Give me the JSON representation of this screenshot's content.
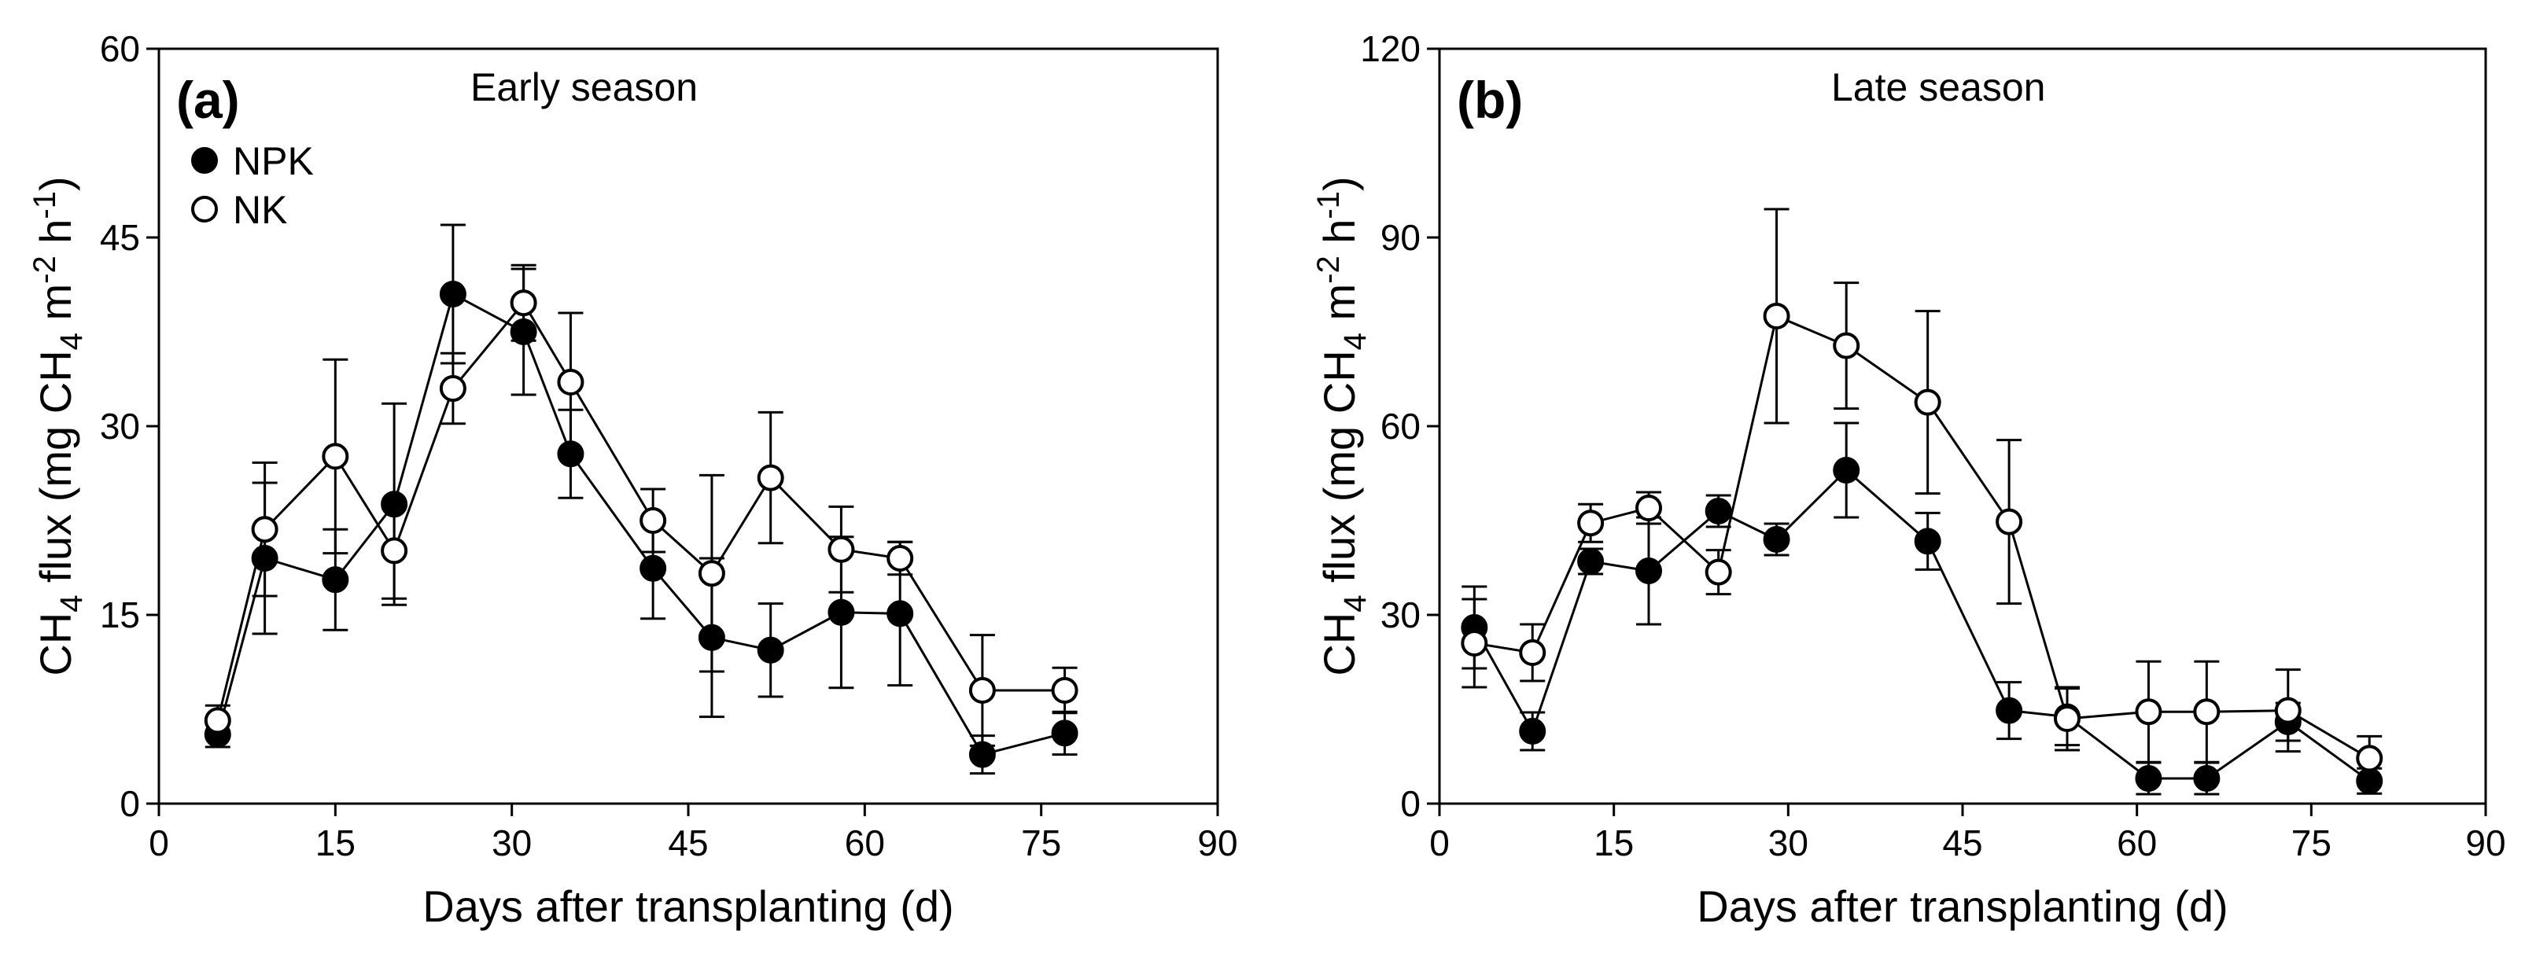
{
  "chart_data": [
    {
      "type": "line",
      "panel_label": "(a)",
      "season_title": "Early season",
      "xlabel": "Days after transplanting (d)",
      "ylabel": {
        "main": "CH",
        "sub": "4",
        "rest": " flux (mg CH",
        "sub2": "4",
        "rest2": " m",
        "sup": "-2",
        "rest3": " h",
        "sup2": "-1",
        "end": ")"
      },
      "xlim": [
        0,
        90
      ],
      "ylim": [
        0,
        60
      ],
      "xticks": [
        "0",
        "15",
        "30",
        "45",
        "60",
        "75",
        "90"
      ],
      "yticks": [
        "0",
        "15",
        "30",
        "45",
        "60"
      ],
      "legend": {
        "placement": "top-left",
        "entries": [
          "NPK",
          "NK"
        ]
      },
      "grid": false,
      "series": [
        {
          "name": "NPK",
          "marker": "filled-circle",
          "x": [
            5,
            9,
            15,
            20,
            25,
            31,
            35,
            42,
            47,
            52,
            58,
            63,
            70,
            77
          ],
          "y": [
            5.5,
            19.5,
            17.8,
            23.8,
            40.5,
            37.5,
            27.8,
            18.7,
            13.2,
            12.2,
            15.2,
            15.1,
            3.9,
            5.6
          ],
          "err": [
            1.0,
            6.0,
            4.0,
            8.0,
            5.5,
            5.0,
            3.5,
            4.0,
            6.3,
            3.7,
            6.0,
            5.7,
            1.5,
            1.7
          ]
        },
        {
          "name": "NK",
          "marker": "open-circle",
          "x": [
            5,
            9,
            15,
            20,
            25,
            31,
            35,
            42,
            47,
            52,
            58,
            63,
            70,
            77
          ],
          "y": [
            6.6,
            21.8,
            27.6,
            20.1,
            33.0,
            39.8,
            33.5,
            22.5,
            18.3,
            25.9,
            20.2,
            19.5,
            9.0,
            9.0
          ],
          "err": [
            1.2,
            5.3,
            7.7,
            3.8,
            2.8,
            3.0,
            5.5,
            2.5,
            7.8,
            5.2,
            3.4,
            1.3,
            4.4,
            1.8
          ]
        }
      ]
    },
    {
      "type": "line",
      "panel_label": "(b)",
      "season_title": "Late season",
      "xlabel": "Days after transplanting (d)",
      "ylabel": {
        "main": "CH",
        "sub": "4",
        "rest": " flux (mg CH",
        "sub2": "4",
        "rest2": " m",
        "sup": "-2",
        "rest3": " h",
        "sup2": "-1",
        "end": ")"
      },
      "xlim": [
        0,
        90
      ],
      "ylim": [
        0,
        120
      ],
      "xticks": [
        "0",
        "15",
        "30",
        "45",
        "60",
        "75",
        "90"
      ],
      "yticks": [
        "0",
        "30",
        "60",
        "90",
        "120"
      ],
      "grid": false,
      "series": [
        {
          "name": "NPK",
          "marker": "filled-circle",
          "x": [
            3,
            8,
            13,
            18,
            24,
            29,
            35,
            42,
            49,
            54,
            61,
            66,
            73,
            80
          ],
          "y": [
            28.0,
            11.5,
            38.5,
            37.0,
            46.5,
            42.0,
            53.0,
            41.7,
            14.8,
            13.8,
            4.0,
            4.0,
            13.0,
            3.6
          ],
          "err": [
            6.5,
            3.0,
            2.0,
            8.5,
            2.5,
            2.5,
            7.5,
            4.5,
            4.5,
            4.5,
            2.5,
            2.5,
            3.0,
            2.0
          ]
        },
        {
          "name": "NK",
          "marker": "open-circle",
          "x": [
            3,
            8,
            13,
            18,
            24,
            29,
            35,
            42,
            49,
            54,
            61,
            66,
            73,
            80
          ],
          "y": [
            25.5,
            24.0,
            44.6,
            47.0,
            36.8,
            77.5,
            72.8,
            63.8,
            44.8,
            13.5,
            14.6,
            14.6,
            14.8,
            7.2
          ],
          "err": [
            7.0,
            4.5,
            3.0,
            2.5,
            3.5,
            17.0,
            10.0,
            14.5,
            13.0,
            5.0,
            8.0,
            8.0,
            6.5,
            3.5
          ]
        }
      ]
    }
  ]
}
